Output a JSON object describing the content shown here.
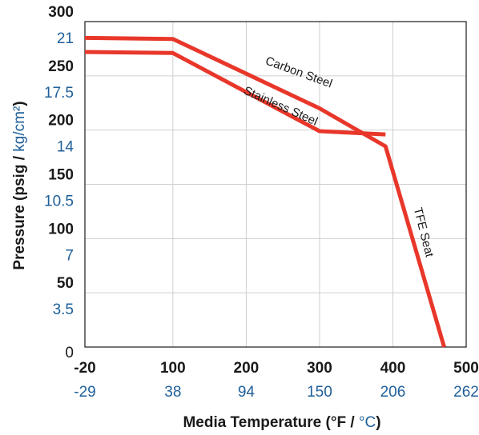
{
  "chart_data": {
    "type": "line",
    "xlabel_main": "Media Temperature (°F / ",
    "xlabel_unit": "°C",
    "xlabel_close": ")",
    "ylabel_main": "Pressure (psig / ",
    "ylabel_unit": "kg/cm²",
    "ylabel_close": ")",
    "xlim": [
      -20,
      500
    ],
    "ylim": [
      0,
      300
    ],
    "x_ticks": [
      {
        "f": "-20",
        "c": "-29",
        "value": -20
      },
      {
        "f": "100",
        "c": "38",
        "value": 100
      },
      {
        "f": "200",
        "c": "94",
        "value": 200
      },
      {
        "f": "300",
        "c": "150",
        "value": 300
      },
      {
        "f": "400",
        "c": "206",
        "value": 400
      },
      {
        "f": "500",
        "c": "262",
        "value": 500
      }
    ],
    "y_ticks": [
      {
        "psig": "0",
        "kg": "",
        "value": 0
      },
      {
        "psig": "50",
        "kg": "3.5",
        "value": 50
      },
      {
        "psig": "100",
        "kg": "7",
        "value": 100
      },
      {
        "psig": "150",
        "kg": "10.5",
        "value": 150
      },
      {
        "psig": "200",
        "kg": "14",
        "value": 200
      },
      {
        "psig": "250",
        "kg": "17.5",
        "value": 250
      },
      {
        "psig": "300",
        "kg": "21",
        "value": 300
      }
    ],
    "grid": true,
    "series": [
      {
        "name": "Carbon Steel",
        "points": [
          [
            -20,
            285
          ],
          [
            100,
            284
          ],
          [
            300,
            220
          ],
          [
            390,
            185
          ],
          [
            470,
            0
          ]
        ]
      },
      {
        "name": "Stainless Steel",
        "points": [
          [
            -20,
            272
          ],
          [
            100,
            271
          ],
          [
            300,
            199
          ],
          [
            390,
            196
          ]
        ]
      }
    ],
    "annotations": [
      {
        "text": "Carbon Steel",
        "x": 270,
        "y": 250,
        "angle": 20
      },
      {
        "text": "Stainless Steel",
        "x": 245,
        "y": 219,
        "angle": 24
      },
      {
        "text": "TFE Seat",
        "x": 437,
        "y": 105,
        "angle": 76
      }
    ],
    "line_color": "#e8372a"
  }
}
